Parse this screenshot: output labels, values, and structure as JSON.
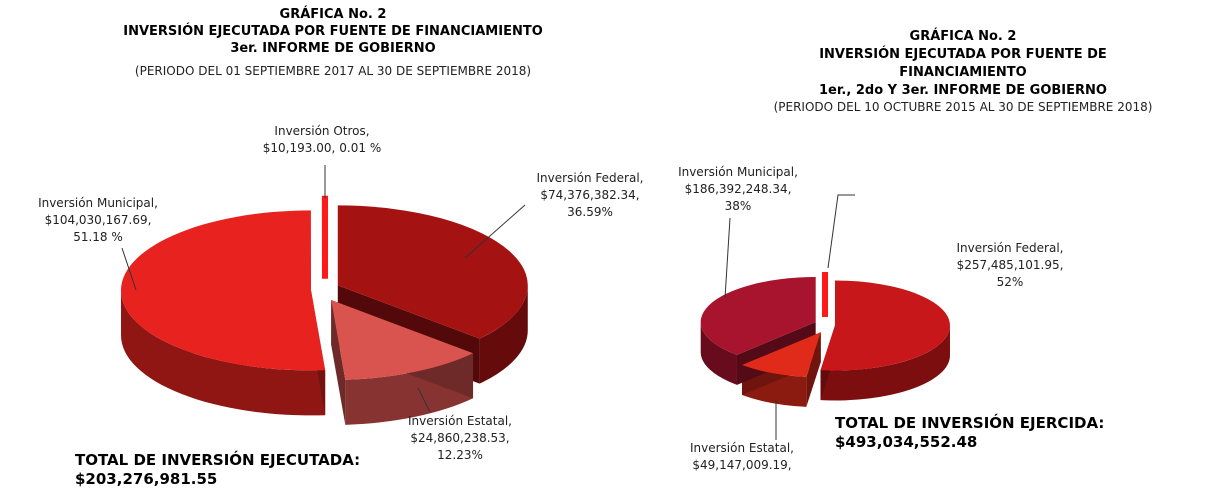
{
  "chart_data": [
    {
      "type": "pie",
      "title": [
        "GRÁFICA No. 2",
        "INVERSIÓN EJECUTADA POR FUENTE DE FINANCIAMIENTO",
        "3er. INFORME DE GOBIERNO"
      ],
      "subtitle": "(PERIODO DEL 01 SEPTIEMBRE 2017 AL 30 DE SEPTIEMBRE 2018)",
      "categories": [
        "Inversión Federal,",
        "Inversión Estatal,",
        "Inversión Municipal,",
        "Inversión Otros,"
      ],
      "amounts": [
        "$74,376,382.34,",
        "$24,860,238.53,",
        "$104,030,167.69,",
        "$10,193.00,"
      ],
      "values": [
        36.59,
        12.23,
        51.18,
        0.01
      ],
      "value_labels": [
        "36.59%",
        "12.23%",
        "51.18 %",
        "0.01 %"
      ],
      "colors": [
        "#a51212",
        "#d9534f",
        "#e8231f",
        "#ff1a1a"
      ],
      "total_label": "TOTAL DE INVERSIÓN EJECUTADA:",
      "total": "$203,276,981.55"
    },
    {
      "type": "pie",
      "title": [
        "GRÁFICA No. 2",
        "INVERSIÓN EJECUTADA POR FUENTE DE",
        "FINANCIAMIENTO",
        "1er., 2do Y 3er. INFORME DE GOBIERNO"
      ],
      "subtitle": "(PERIODO DEL 10 OCTUBRE 2015 AL 30 DE SEPTIEMBRE 2018)",
      "categories": [
        "Inversión Federal,",
        "Inversión Estatal,",
        "Inversión Municipal,",
        null
      ],
      "amounts": [
        "$257,485,101.95,",
        "$49,147,009.19,",
        "$186,392,248.34,",
        null
      ],
      "values": [
        52,
        10,
        38,
        0
      ],
      "value_labels": [
        "52%",
        null,
        "38%",
        null
      ],
      "colors": [
        "#c8171a",
        "#e02a1a",
        "#a8142e",
        "#ff1a1a"
      ],
      "total_label": "TOTAL DE INVERSIÓN EJERCIDA:",
      "total": "$493,034,552.48"
    }
  ]
}
